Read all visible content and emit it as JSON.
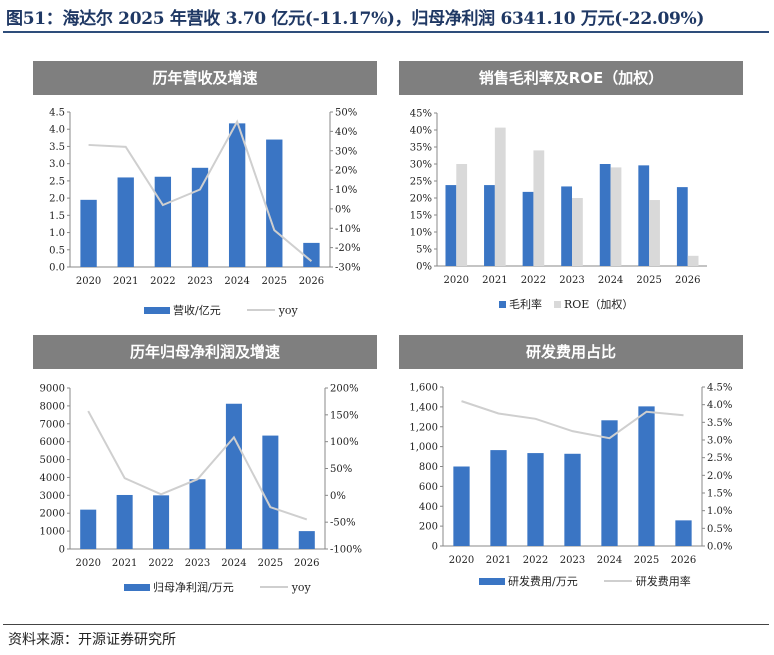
{
  "figure_title": "图51：海达尔 2025 年营收 3.70 亿元(-11.17%)，归母净利润 6341.10 万元(-22.09%)",
  "source_note": "资料来源：开源证券研究所",
  "colors": {
    "bar_blue": "#3a75c4",
    "bar_grey": "#d9d9d9",
    "line_grey": "#cfcfcf",
    "header_grey": "#7f7f7f"
  },
  "chart_data": [
    {
      "id": "revenue",
      "type": "bar+line",
      "title": "历年营收及增速",
      "categories": [
        "2020",
        "2021",
        "2022",
        "2023",
        "2024",
        "2025",
        "2026"
      ],
      "bar_series": {
        "name": "营收/亿元",
        "values": [
          1.95,
          2.6,
          2.62,
          2.88,
          4.17,
          3.7,
          0.7
        ]
      },
      "line_series": {
        "name": "yoy",
        "values": [
          33,
          32,
          2,
          10,
          45,
          -11,
          -27
        ]
      },
      "ylim": [
        0,
        4.5
      ],
      "y_ticks": [
        "0.0",
        "0.5",
        "1.0",
        "1.5",
        "2.0",
        "2.5",
        "3.0",
        "3.5",
        "4.0",
        "4.5"
      ],
      "y2lim": [
        -30,
        50
      ],
      "y2_ticks": [
        "-30%",
        "-20%",
        "-10%",
        "0%",
        "10%",
        "20%",
        "30%",
        "40%",
        "50%"
      ]
    },
    {
      "id": "margin",
      "type": "bar",
      "title": "销售毛利率及ROE（加权）",
      "categories": [
        "2020",
        "2021",
        "2022",
        "2023",
        "2024",
        "2025",
        "2026"
      ],
      "series": [
        {
          "name": "毛利率",
          "values": [
            23.8,
            23.8,
            21.8,
            23.4,
            30,
            29.6,
            23.2
          ]
        },
        {
          "name": "ROE（加权）",
          "values": [
            30,
            40.7,
            34,
            20,
            29,
            19.4,
            3
          ]
        }
      ],
      "ylim": [
        0,
        45
      ],
      "y_ticks": [
        "0%",
        "5%",
        "10%",
        "15%",
        "20%",
        "25%",
        "30%",
        "35%",
        "40%",
        "45%"
      ]
    },
    {
      "id": "net_profit",
      "type": "bar+line",
      "title": "历年归母净利润及增速",
      "categories": [
        "2020",
        "2021",
        "2022",
        "2023",
        "2024",
        "2025",
        "2026"
      ],
      "bar_series": {
        "name": "归母净利润/万元",
        "values": [
          2200,
          3020,
          3000,
          3900,
          8120,
          6340,
          1000
        ]
      },
      "line_series": {
        "name": "yoy",
        "values": [
          157,
          32,
          2,
          30,
          108,
          -22,
          -45
        ]
      },
      "ylim": [
        0,
        9000
      ],
      "y_ticks": [
        "0",
        "1000",
        "2000",
        "3000",
        "4000",
        "5000",
        "6000",
        "7000",
        "8000",
        "9000"
      ],
      "y2lim": [
        -100,
        200
      ],
      "y2_ticks": [
        "-100%",
        "-50%",
        "0%",
        "50%",
        "100%",
        "150%",
        "200%"
      ]
    },
    {
      "id": "rnd",
      "type": "bar+line",
      "title": "研发费用占比",
      "categories": [
        "2020",
        "2021",
        "2022",
        "2023",
        "2024",
        "2025",
        "2026"
      ],
      "bar_series": {
        "name": "研发费用/万元",
        "values": [
          800,
          965,
          935,
          928,
          1265,
          1405,
          258
        ]
      },
      "line_series": {
        "name": "研发费用率",
        "values": [
          4.1,
          3.75,
          3.6,
          3.25,
          3.05,
          3.8,
          3.7
        ]
      },
      "ylim": [
        0,
        1600
      ],
      "y_ticks": [
        "0",
        "200",
        "400",
        "600",
        "800",
        "1,000",
        "1,200",
        "1,400",
        "1,600"
      ],
      "y2lim": [
        0,
        4.5
      ],
      "y2_ticks": [
        "0.0%",
        "0.5%",
        "1.0%",
        "1.5%",
        "2.0%",
        "2.5%",
        "3.0%",
        "3.5%",
        "4.0%",
        "4.5%"
      ]
    }
  ]
}
